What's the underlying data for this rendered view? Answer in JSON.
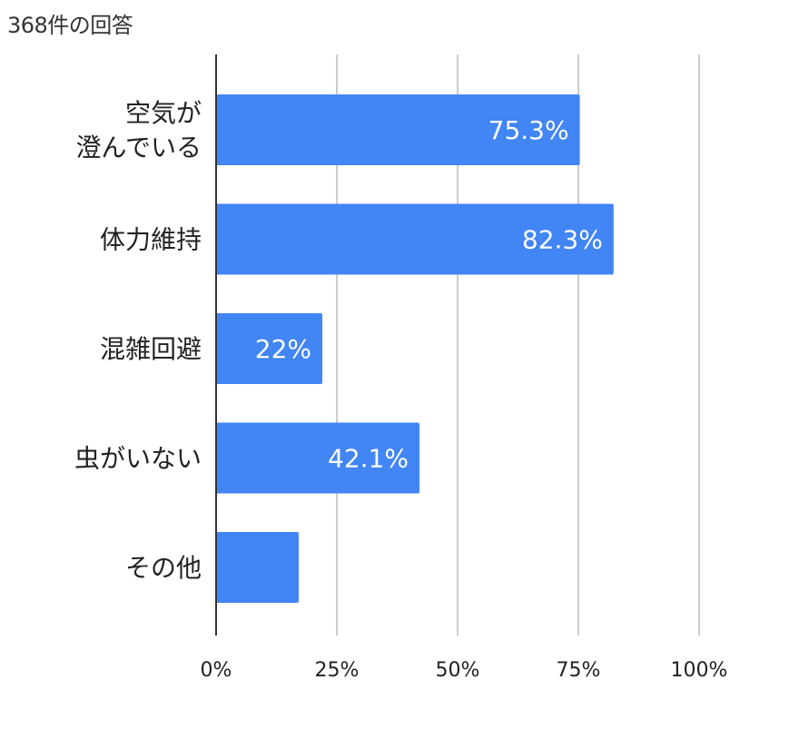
{
  "header": {
    "response_count": "368件の回答"
  },
  "colors": {
    "bar": "#4285f4",
    "grid": "#cccccc",
    "axis": "#333333",
    "text": "#222222",
    "bar_label": "#ffffff"
  },
  "chart_data": {
    "type": "bar",
    "orientation": "horizontal",
    "categories": [
      "空気が\n澄んでいる",
      "体力維持",
      "混雑回避",
      "虫がいない",
      "その他"
    ],
    "values": [
      75.3,
      82.3,
      22,
      42.1,
      17.1
    ],
    "data_labels": [
      "75.3%",
      "82.3%",
      "22%",
      "42.1%",
      ""
    ],
    "xlim": [
      0,
      100
    ],
    "x_ticks": [
      0,
      25,
      50,
      75,
      100
    ],
    "x_tick_labels": [
      "0%",
      "25%",
      "50%",
      "75%",
      "100%"
    ],
    "grid": true,
    "legend": "none"
  }
}
